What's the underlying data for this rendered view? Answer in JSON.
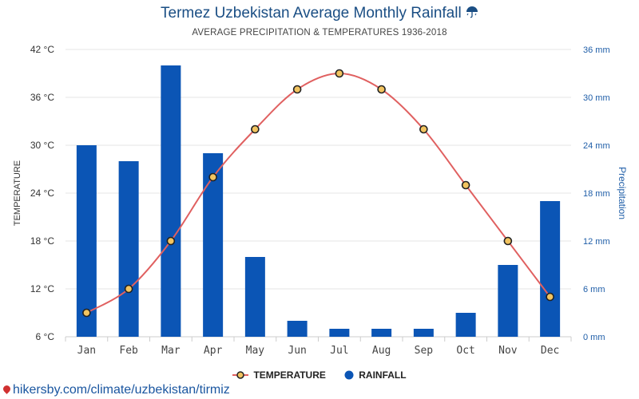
{
  "page": {
    "title": "Termez Uzbekistan Average Monthly Rainfall",
    "title_icon": "umbrella-rain-icon",
    "subtitle": "AVERAGE PRECIPITATION & TEMPERATURES 1936-2018",
    "source": "hikersby.com/climate/uzbekistan/tirmiz"
  },
  "chart_data": {
    "type": "bar",
    "categories": [
      "Jan",
      "Feb",
      "Mar",
      "Apr",
      "May",
      "Jun",
      "Jul",
      "Aug",
      "Sep",
      "Oct",
      "Nov",
      "Dec"
    ],
    "series": [
      {
        "name": "RAINFALL",
        "type": "bar",
        "axis": "right",
        "unit": "mm",
        "values": [
          24,
          22,
          34,
          23,
          10,
          2,
          1,
          1,
          1,
          3,
          9,
          17
        ],
        "color": "#0b55b5"
      },
      {
        "name": "TEMPERATURE",
        "type": "line",
        "axis": "left",
        "unit": "°C",
        "values": [
          9,
          12,
          18,
          26,
          32,
          37,
          39,
          37,
          32,
          25,
          18,
          11
        ],
        "color": "#e06060",
        "marker_fill": "#f2c460"
      }
    ],
    "y_left": {
      "label": "TEMPERATURE",
      "range": [
        6,
        42
      ],
      "ticks": [
        "6 °C",
        "12 °C",
        "18 °C",
        "24 °C",
        "30 °C",
        "36 °C",
        "42 °C"
      ]
    },
    "y_right": {
      "label": "Precipitation",
      "range": [
        0,
        36
      ],
      "ticks": [
        "0 mm",
        "6 mm",
        "12 mm",
        "18 mm",
        "24 mm",
        "30 mm",
        "36 mm"
      ]
    },
    "grid": true,
    "legend": {
      "position": "bottom-center",
      "entries": [
        "TEMPERATURE",
        "RAINFALL"
      ]
    }
  }
}
